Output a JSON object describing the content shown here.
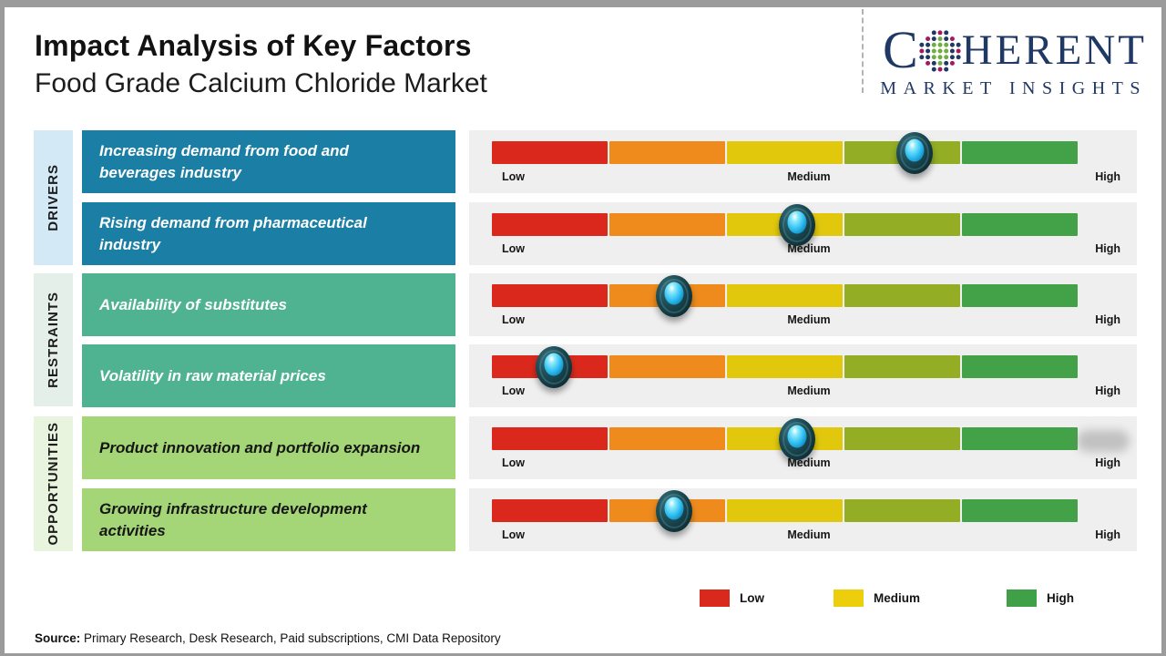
{
  "header": {
    "title": "Impact Analysis of Key Factors",
    "subtitle": "Food Grade Calcium Chloride Market"
  },
  "logo": {
    "brand_first_letter": "C",
    "brand_rest": "HERENT",
    "brand_sub": "MARKET INSIGHTS",
    "globe_icon": "dotted-globe-icon",
    "colors": {
      "navy": "#203864",
      "green": "#6fae3f",
      "crimson": "#a3195b"
    }
  },
  "groups": [
    {
      "id": "drivers",
      "label": "DRIVERS",
      "color": "#d3e9f5"
    },
    {
      "id": "restraints",
      "label": "RESTRAINTS",
      "color": "#e4efe9"
    },
    {
      "id": "opportunities",
      "label": "OPPORTUNITIES",
      "color": "#e8f4dd"
    }
  ],
  "scale_labels": {
    "low": "Low",
    "medium": "Medium",
    "high": "High"
  },
  "rows": [
    {
      "group": "DRIVERS",
      "label": "Increasing demand from food and beverages industry",
      "impact_pct": 72,
      "box_color": "#1b7ea5"
    },
    {
      "group": "DRIVERS",
      "label": "Rising demand from pharmaceutical industry",
      "impact_pct": 52,
      "box_color": "#1b7ea5"
    },
    {
      "group": "RESTRAINTS",
      "label": "Availability of substitutes",
      "impact_pct": 31,
      "box_color": "#4fb392"
    },
    {
      "group": "RESTRAINTS",
      "label": "Volatility in raw material prices",
      "impact_pct": 10.5,
      "box_color": "#4fb392"
    },
    {
      "group": "OPPORTUNITIES",
      "label": "Product innovation and portfolio expansion",
      "impact_pct": 52,
      "box_color": "#a4d677"
    },
    {
      "group": "OPPORTUNITIES",
      "label": "Growing infrastructure development activities",
      "impact_pct": 31,
      "box_color": "#a4d677"
    }
  ],
  "segment_colors": [
    "#da291c",
    "#ef8b1c",
    "#e2c80d",
    "#93ad25",
    "#43a247"
  ],
  "legend": [
    {
      "label": "Low",
      "color": "#d8291c"
    },
    {
      "label": "Medium",
      "color": "#ecce0c"
    },
    {
      "label": "High",
      "color": "#3fa047"
    }
  ],
  "source": {
    "prefix": "Source:",
    "text": " Primary Research, Desk Research, Paid subscriptions, CMI Data Repository"
  },
  "chart_data": {
    "type": "bar",
    "title": "Impact Analysis of Key Factors",
    "subtitle": "Food Grade Calcium Chloride Market",
    "scale": {
      "labels": [
        "Low",
        "Medium",
        "High"
      ],
      "range_pct": [
        0,
        100
      ]
    },
    "series": [
      {
        "group": "Drivers",
        "factor": "Increasing demand from food and beverages industry",
        "impact_pct": 72,
        "impact_level": "Medium-High"
      },
      {
        "group": "Drivers",
        "factor": "Rising demand from pharmaceutical industry",
        "impact_pct": 52,
        "impact_level": "Medium"
      },
      {
        "group": "Restraints",
        "factor": "Availability of substitutes",
        "impact_pct": 31,
        "impact_level": "Low-Medium"
      },
      {
        "group": "Restraints",
        "factor": "Volatility in raw material prices",
        "impact_pct": 10.5,
        "impact_level": "Low"
      },
      {
        "group": "Opportunities",
        "factor": "Product innovation and portfolio expansion",
        "impact_pct": 52,
        "impact_level": "Medium"
      },
      {
        "group": "Opportunities",
        "factor": "Growing infrastructure development activities",
        "impact_pct": 31,
        "impact_level": "Low-Medium"
      }
    ],
    "legend": [
      "Low",
      "Medium",
      "High"
    ],
    "legend_position": "bottom-right"
  }
}
